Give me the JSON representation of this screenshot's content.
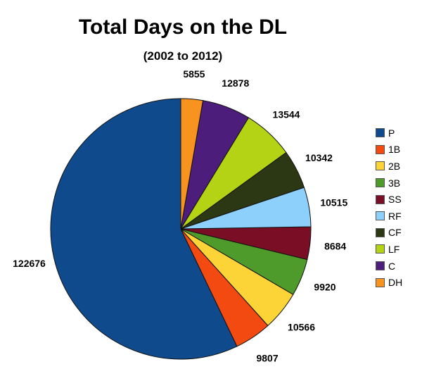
{
  "chart_data": {
    "type": "pie",
    "title": "Total Days on the DL",
    "subtitle": "(2002 to 2012)",
    "categories": [
      "P",
      "1B",
      "2B",
      "3B",
      "SS",
      "RF",
      "CF",
      "LF",
      "C",
      "DH"
    ],
    "values": [
      122676,
      9807,
      10566,
      9920,
      8684,
      10515,
      10342,
      13544,
      12878,
      5855
    ],
    "colors": [
      "#0f4b8c",
      "#f24a11",
      "#fdd437",
      "#4e9a2a",
      "#7a0e24",
      "#8cd0fb",
      "#2c3714",
      "#b4d315",
      "#4d1d7b",
      "#f7931e"
    ],
    "legend_position": "right"
  }
}
